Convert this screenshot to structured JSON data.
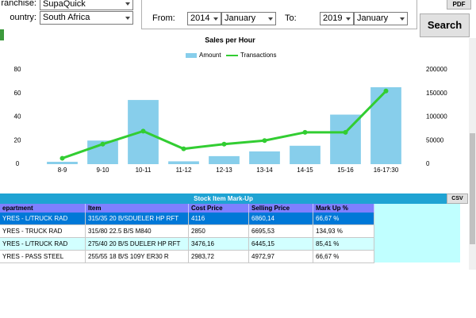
{
  "form": {
    "franchise_label": "ranchise:",
    "franchise": "SupaQuick",
    "country_label": "ountry:",
    "country": "South Africa",
    "pdf": "PDF",
    "from_label": "From:",
    "from_year": "2014",
    "from_month": "January",
    "to_label": "To:",
    "to_year": "2019",
    "to_month": "January",
    "search": "Search"
  },
  "chart_data": {
    "type": "bar",
    "title": "Sales per Hour",
    "categories": [
      "8-9",
      "9-10",
      "10-11",
      "11-12",
      "12-13",
      "13-14",
      "14-15",
      "15-16",
      "16-17:30"
    ],
    "series": [
      {
        "name": "Amount",
        "type": "bar",
        "axis": "y2",
        "color": "#87ceeb",
        "values": [
          5000,
          50000,
          136000,
          6000,
          17000,
          27000,
          39000,
          105000,
          163000
        ]
      },
      {
        "name": "Transactions",
        "type": "line",
        "color": "#32cd32",
        "values": [
          5,
          17,
          28,
          13,
          17,
          20,
          27,
          27,
          62
        ]
      }
    ],
    "ylim": [
      0,
      80
    ],
    "yticks": [
      0,
      20,
      40,
      60,
      80
    ],
    "y2lim": [
      0,
      200000
    ],
    "y2ticks": [
      0,
      50000,
      100000,
      150000,
      200000
    ],
    "grid": false
  },
  "table": {
    "title": "Stock Item Mark-Up",
    "csv": "CSV",
    "columns": [
      "epartment",
      "Item",
      "Cost Price",
      "Selling Price",
      "Mark Up %"
    ],
    "rows": [
      [
        "YRES - L/TRUCK RAD",
        "315/35 20 B/SDUELER HP RFT",
        "4116",
        "6860,14",
        "66,67 %"
      ],
      [
        "YRES - TRUCK RAD",
        "315/80 22.5 B/S M840",
        "2850",
        "6695,53",
        "134,93 %"
      ],
      [
        "YRES - L/TRUCK RAD",
        "275/40 20 B/S DUELER HP RFT",
        "3476,16",
        "6445,15",
        "85,41 %"
      ],
      [
        "YRES - PASS STEEL",
        "255/55 18 B/S 109Y ER30 R",
        "2983,72",
        "4972,97",
        "66,67 %"
      ]
    ]
  }
}
